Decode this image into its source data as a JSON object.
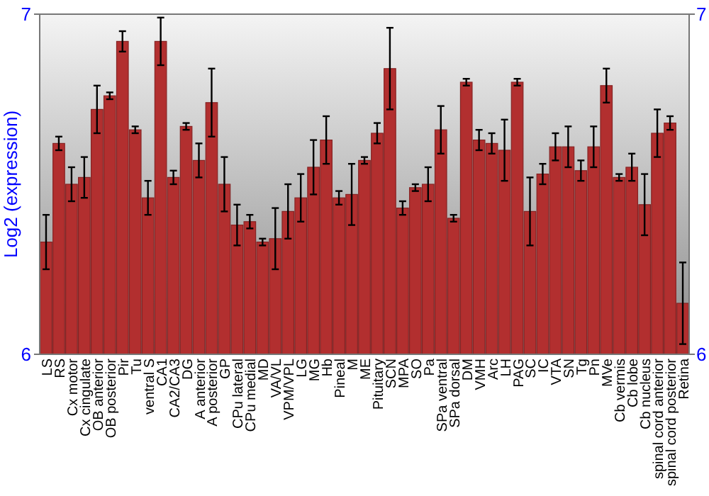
{
  "chart_data": {
    "type": "bar",
    "ylabel": "Log2 (expression)",
    "categories": [
      "LS",
      "RS",
      "Cx motor",
      "Cx cingulate",
      "OB anterior",
      "OB posterior",
      "Pir",
      "Tu",
      "ventral S",
      "CA1",
      "CA2/CA3",
      "DG",
      "A anterior",
      "A posterior",
      "GP",
      "CPu lateral",
      "CPu medial",
      "MD",
      "VA/VL",
      "VPM/VPL",
      "LG",
      "MG",
      "Hb",
      "Pineal",
      "M",
      "ME",
      "Pituitary",
      "SCN",
      "MPA",
      "SO",
      "Pa",
      "SPa ventral",
      "SPa dorsal",
      "DM",
      "VMH",
      "Arc",
      "LH",
      "PAG",
      "SC",
      "IC",
      "VTA",
      "SN",
      "Tg",
      "Pn",
      "MVe",
      "Cb vermis",
      "Cb lobe",
      "Cb nucleus",
      "spinal cord anterior",
      "spinal cord posterior",
      "Retina"
    ],
    "values": [
      6.33,
      6.62,
      6.5,
      6.52,
      6.72,
      6.76,
      6.92,
      6.66,
      6.46,
      6.92,
      6.52,
      6.67,
      6.57,
      6.74,
      6.5,
      6.38,
      6.39,
      6.33,
      6.34,
      6.42,
      6.46,
      6.55,
      6.63,
      6.46,
      6.47,
      6.57,
      6.65,
      6.84,
      6.43,
      6.49,
      6.5,
      6.66,
      6.4,
      6.8,
      6.63,
      6.62,
      6.6,
      6.8,
      6.42,
      6.53,
      6.61,
      6.61,
      6.54,
      6.61,
      6.79,
      6.52,
      6.55,
      6.44,
      6.65,
      6.68,
      6.15
    ],
    "errors": [
      0.08,
      0.02,
      0.05,
      0.06,
      0.07,
      0.01,
      0.03,
      0.01,
      0.05,
      0.07,
      0.02,
      0.01,
      0.05,
      0.1,
      0.08,
      0.06,
      0.02,
      0.01,
      0.09,
      0.08,
      0.07,
      0.08,
      0.07,
      0.02,
      0.09,
      0.01,
      0.03,
      0.12,
      0.02,
      0.01,
      0.05,
      0.07,
      0.01,
      0.01,
      0.03,
      0.03,
      0.09,
      0.01,
      0.1,
      0.03,
      0.04,
      0.06,
      0.03,
      0.06,
      0.05,
      0.01,
      0.04,
      0.09,
      0.07,
      0.02,
      0.12
    ],
    "color": "#b22f2f",
    "ylim": [
      6,
      7
    ],
    "yticks": [
      6,
      7
    ],
    "y2lim": [
      6,
      7
    ],
    "y2ticks": [
      6,
      7
    ]
  }
}
